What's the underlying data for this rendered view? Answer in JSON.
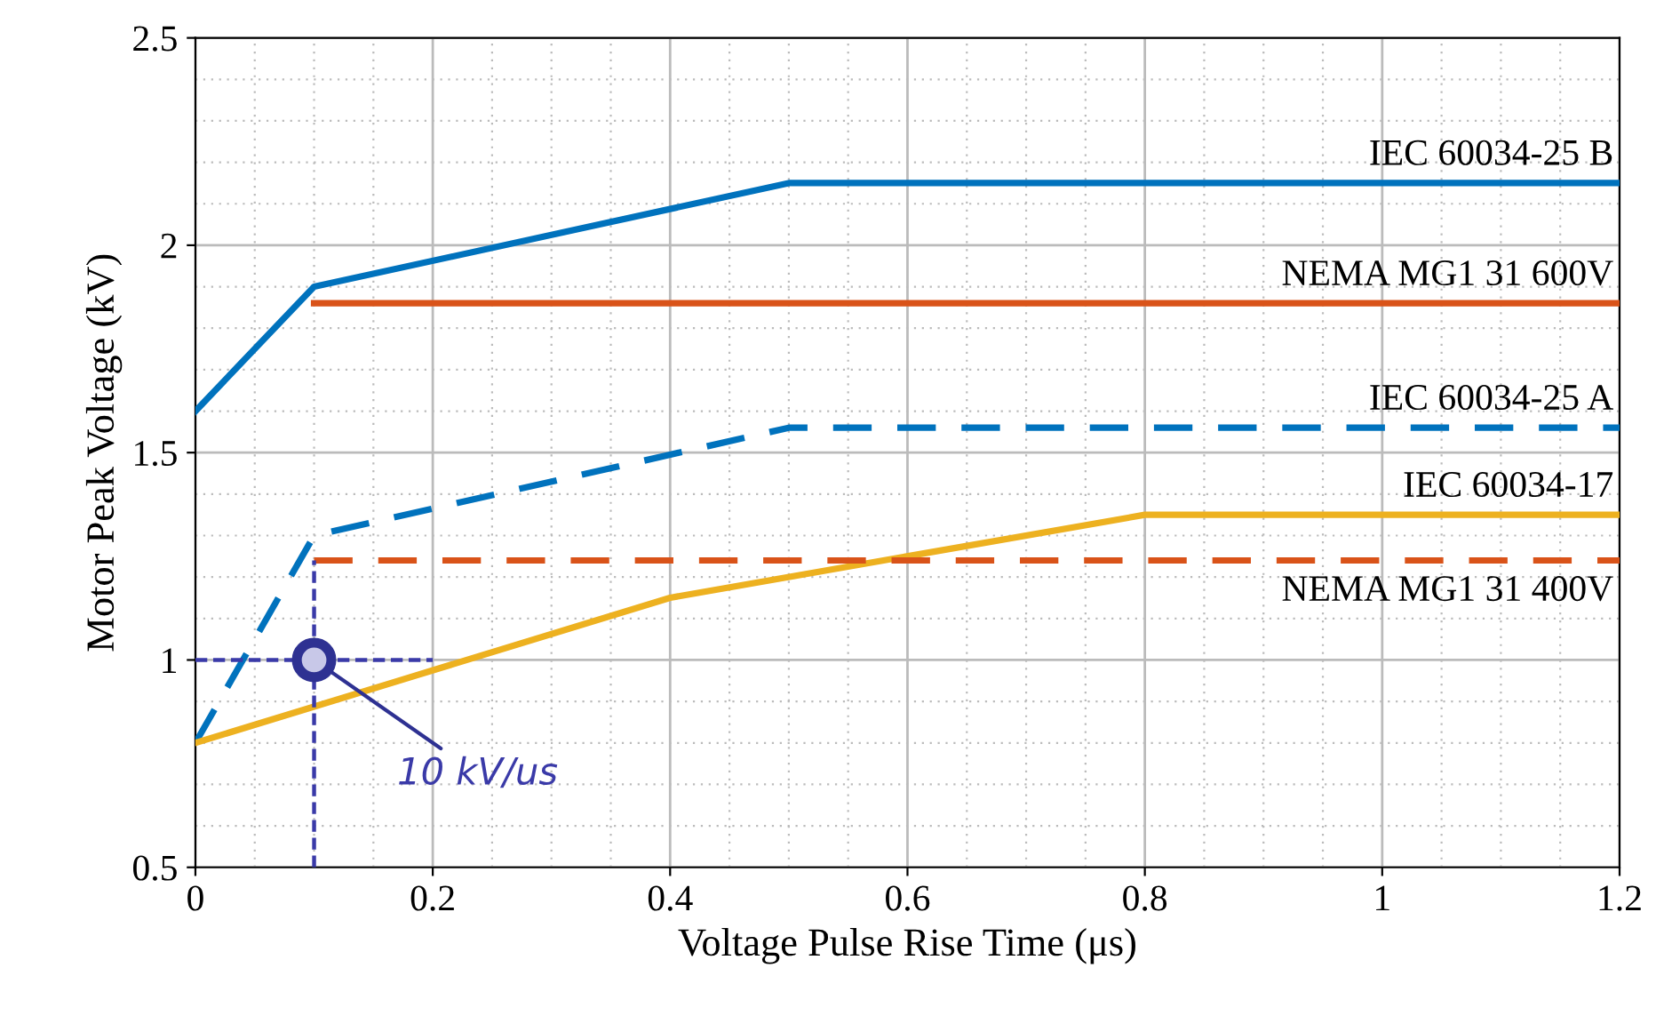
{
  "chart_data": {
    "type": "line",
    "xlabel": "Voltage Pulse Rise Time (μs)",
    "ylabel": "Motor Peak Voltage (kV)",
    "xlim": [
      0,
      1.2
    ],
    "ylim": [
      0.5,
      2.5
    ],
    "xticks": [
      0,
      0.2,
      0.4,
      0.6,
      0.8,
      1,
      1.2
    ],
    "yticks": [
      0.5,
      1,
      1.5,
      2,
      2.5
    ],
    "grid": true,
    "legend": false,
    "series": [
      {
        "name": "IEC 60034-25 B",
        "color": "#0072bd",
        "line_style": "solid",
        "x": [
          0,
          0.1,
          0.5,
          1.2
        ],
        "values": [
          1.6,
          1.9,
          2.15,
          2.15
        ]
      },
      {
        "name": "NEMA MG1 31 600V",
        "color": "#d95319",
        "line_style": "solid",
        "x": [
          0.1,
          1.2
        ],
        "values": [
          1.86,
          1.86
        ]
      },
      {
        "name": "IEC 60034-25 A",
        "color": "#0072bd",
        "line_style": "dashed",
        "x": [
          0,
          0.1,
          0.5,
          1.2
        ],
        "values": [
          0.8,
          1.3,
          1.56,
          1.56
        ]
      },
      {
        "name": "IEC 60034-17",
        "color": "#edb120",
        "line_style": "solid",
        "x": [
          0,
          0.4,
          0.8,
          1.2
        ],
        "values": [
          0.8,
          1.15,
          1.35,
          1.35
        ]
      },
      {
        "name": "NEMA MG1 31 400V",
        "color": "#d95319",
        "line_style": "dashed",
        "x": [
          0.1,
          1.2
        ],
        "values": [
          1.24,
          1.24
        ]
      },
      {
        "color": "#3a3aa8",
        "line_style": "dashed",
        "x": [
          0.1,
          0.1
        ],
        "values": [
          0.5,
          1.24
        ]
      },
      {
        "color": "#3a3aa8",
        "line_style": "dashed",
        "x": [
          0,
          0.2
        ],
        "values": [
          1,
          1
        ]
      },
      {
        "type": "scatter",
        "color": "#2e3192",
        "marker": "circle",
        "x": [
          0.1
        ],
        "values": [
          1
        ]
      }
    ],
    "annotations": [
      {
        "text": "10 kV/us",
        "x": 0.1,
        "y": 1
      }
    ]
  }
}
